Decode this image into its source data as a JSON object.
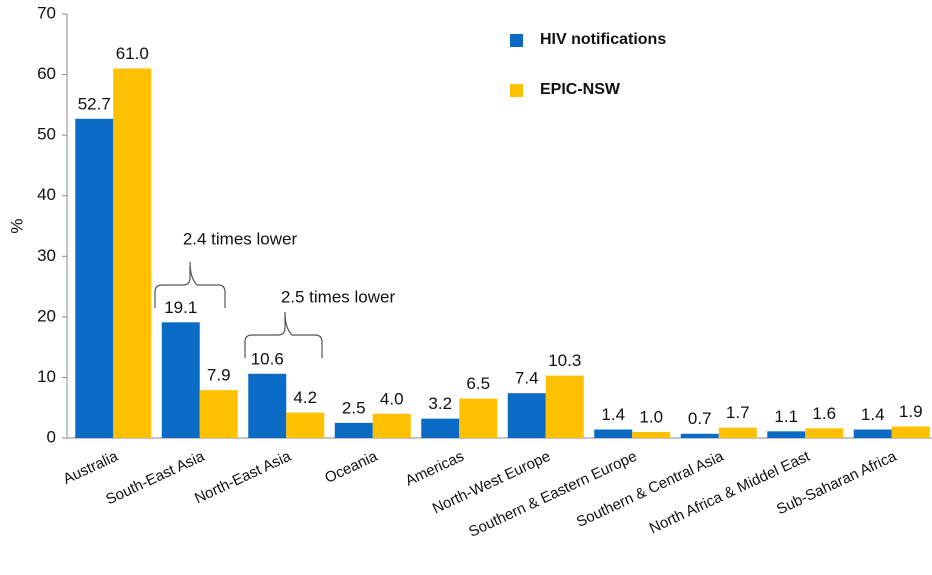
{
  "chart_data": {
    "type": "bar",
    "ylabel": "%",
    "categories": [
      "Australia",
      "South-East Asia",
      "North-East Asia",
      "Oceania",
      "Americas",
      "North-West Europe",
      "Southern & Eastern Europe",
      "Southern & Central Asia",
      "North Africa & Middel East",
      "Sub-Saharan Africa"
    ],
    "series": [
      {
        "name": "HIV notifications",
        "color": "#0a6bc4",
        "values": [
          52.7,
          19.1,
          10.6,
          2.5,
          3.2,
          7.4,
          1.4,
          0.7,
          1.1,
          1.4
        ],
        "value_labels": [
          "52.7",
          "19.1",
          "10.6",
          "2.5",
          "3.2",
          "7.4",
          "1.4",
          "0.7",
          "1.1",
          "1.4"
        ]
      },
      {
        "name": "EPIC-NSW",
        "color": "#ffc000",
        "values": [
          61.0,
          7.9,
          4.2,
          4.0,
          6.5,
          10.3,
          1.0,
          1.7,
          1.6,
          1.9
        ],
        "value_labels": [
          "61.0",
          "7.9",
          "4.2",
          "4.0",
          "6.5",
          "10.3",
          "1.0",
          "1.7",
          "1.6",
          "1.9"
        ]
      }
    ],
    "ylim": [
      0,
      70
    ],
    "yticks": [
      0,
      10,
      20,
      30,
      40,
      50,
      60,
      70
    ],
    "annotations": [
      "2.4 times lower",
      "2.5 times lower"
    ],
    "legend": "top-right"
  }
}
